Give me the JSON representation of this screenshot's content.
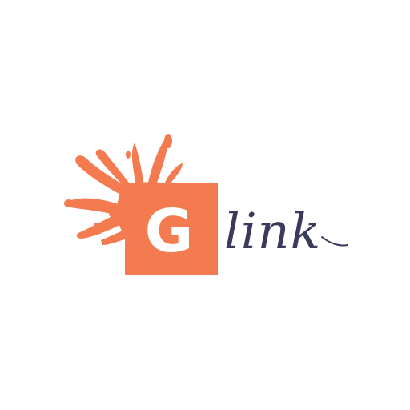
{
  "logo": {
    "brand_letter": "G",
    "brand_word": "link",
    "icon": "paint-splash-icon",
    "colors": {
      "accent": "#F47B4F",
      "script": "#3A3A5C",
      "letter": "#FFFFFF",
      "background": "#FFFFFF"
    }
  }
}
